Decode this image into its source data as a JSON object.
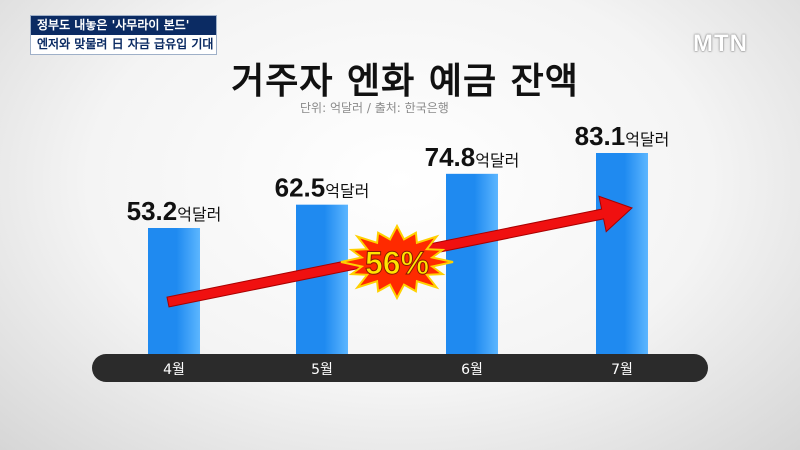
{
  "headline": {
    "line1": "정부도 내놓은 '사무라이 본드'",
    "line2": "엔저와 맞물려 日 자금 급유입 기대"
  },
  "logo": "MTN",
  "colors": {
    "bar": "#1f8af0",
    "bar_highlight": "#5cb6ff",
    "axis_band": "#2b2b2b",
    "arrow": "#f01010",
    "burst_fill": "#ff2a00",
    "burst_text": "#ffe600",
    "headline_bg": "#0b2b63"
  },
  "chart_data": {
    "type": "bar",
    "title": "거주자 엔화 예금 잔액",
    "subtitle": "단위: 억달러 / 출처: 한국은행",
    "categories": [
      "4월",
      "5월",
      "6월",
      "7월"
    ],
    "values": [
      53.2,
      62.5,
      74.8,
      83.1
    ],
    "value_labels": [
      "53.2",
      "62.5",
      "74.8",
      "83.1"
    ],
    "unit": "억달러",
    "annotation": "56%",
    "ylim": [
      0,
      90
    ],
    "grid": false,
    "legend": "none"
  }
}
